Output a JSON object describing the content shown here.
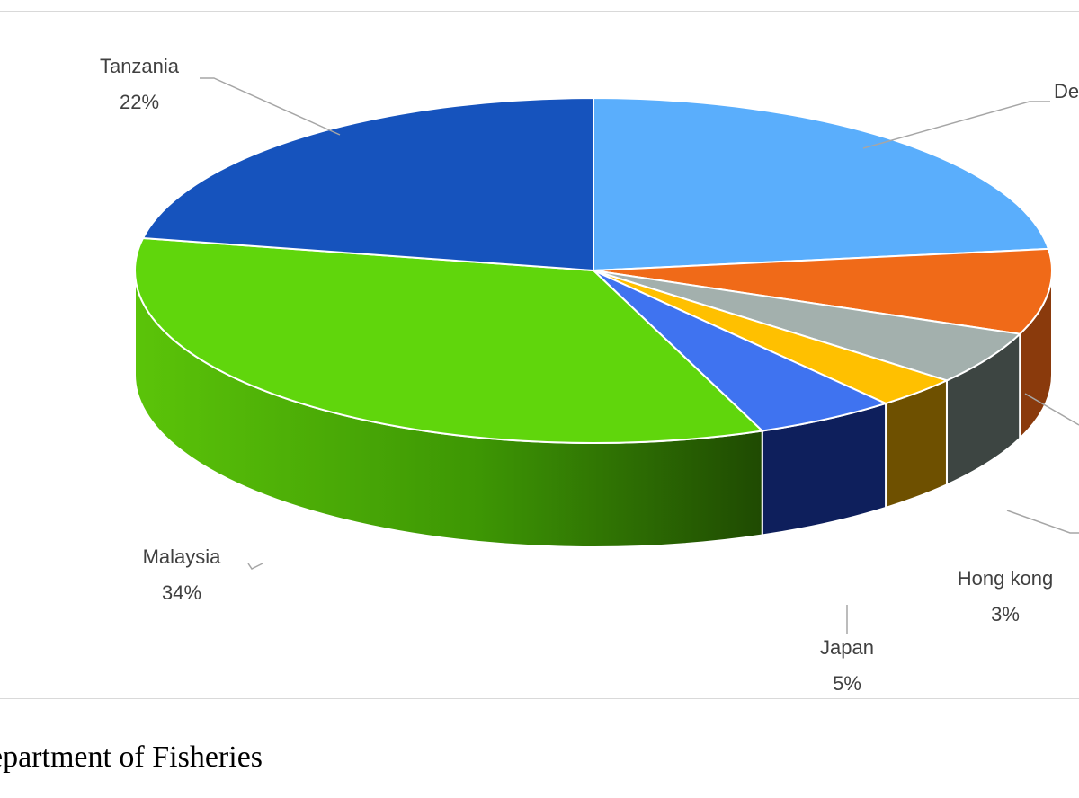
{
  "chart_data": {
    "type": "pie",
    "style": "3d",
    "slices": [
      {
        "label": "De",
        "percent": "",
        "value": 23,
        "color": "#5aaefc",
        "side": "#3f7cb8"
      },
      {
        "label": "",
        "percent": "",
        "value": 8,
        "color": "#f06a18",
        "side": "#8a3a0c"
      },
      {
        "label": "",
        "percent": "",
        "value": 5,
        "color": "#a3b0ad",
        "side": "#3d4542"
      },
      {
        "label": "Hong kong",
        "percent": "3%",
        "value": 3,
        "color": "#ffc000",
        "side": "#6e5000"
      },
      {
        "label": "Japan",
        "percent": "5%",
        "value": 5,
        "color": "#3f73f0",
        "side": "#0e1f5c"
      },
      {
        "label": "Malaysia",
        "percent": "34%",
        "value": 34,
        "color": "#60d60c",
        "side": "#3f9a06"
      },
      {
        "label": "Tanzania",
        "percent": "22%",
        "value": 22,
        "color": "#1653bd",
        "side": "#0e3a85"
      }
    ]
  },
  "source": "epartment of Fisheries"
}
